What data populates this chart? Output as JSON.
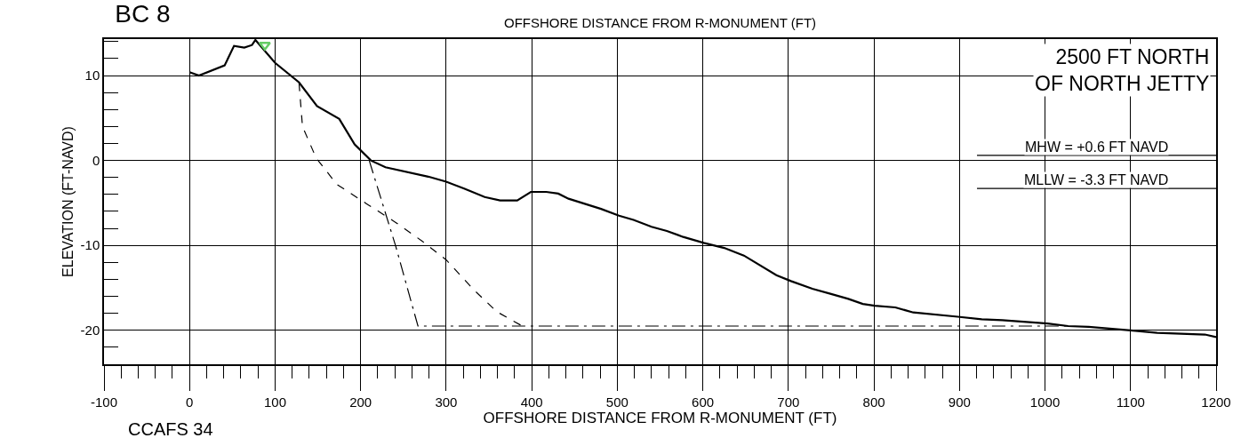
{
  "chart_data": {
    "type": "line",
    "title": "BC 8",
    "xlabel": "OFFSHORE DISTANCE FROM R-MONUMENT (FT)",
    "ylabel": "ELEVATION (FT-NAVD)",
    "annotations": [
      "2500 FT NORTH\nOF NORTH JETTY",
      "OFFSHORE DISTANCE FROM R-MONUMENT (FT)",
      "CCAFS 34"
    ],
    "series": [
      {
        "color": "#000000",
        "line_style": "solid",
        "x": [
          0,
          11,
          41,
          52,
          64,
          73,
          77,
          100,
          128,
          149,
          175,
          193,
          212,
          229,
          279,
          300,
          321,
          345,
          363,
          383,
          399,
          417,
          431,
          443,
          481,
          502,
          519,
          540,
          558,
          577,
          601,
          625,
          648,
          686,
          703,
          728,
          749,
          770,
          787,
          801,
          825,
          846,
          898,
          926,
          950,
          1003,
          1027,
          1051,
          1100,
          1131,
          1187,
          1200
        ],
        "values": [
          10.4,
          10.0,
          11.2,
          13.5,
          13.3,
          13.6,
          14.2,
          11.5,
          9.2,
          6.4,
          4.9,
          1.9,
          0,
          -0.8,
          -1.9,
          -2.5,
          -3.3,
          -4.3,
          -4.7,
          -4.7,
          -3.7,
          -3.7,
          -3.9,
          -4.5,
          -5.7,
          -6.5,
          -7.0,
          -7.8,
          -8.3,
          -9.0,
          -9.7,
          -10.3,
          -11.2,
          -13.5,
          -14.2,
          -15.1,
          -15.7,
          -16.3,
          -16.9,
          -17.1,
          -17.3,
          -17.9,
          -18.4,
          -18.7,
          -18.8,
          -19.2,
          -19.5,
          -19.6,
          -20.0,
          -20.3,
          -20.5,
          -20.8
        ]
      },
      {
        "color": "#000000",
        "line_style": "dashed",
        "x": [
          128,
          132,
          148,
          172,
          207,
          241,
          272,
          300,
          332,
          359,
          389
        ],
        "values": [
          9.1,
          4.0,
          0.3,
          -2.8,
          -5.1,
          -7.3,
          -9.5,
          -11.7,
          -15.2,
          -17.8,
          -19.5
        ]
      },
      {
        "color": "#000000",
        "line_style": "dashdot",
        "x": [
          210,
          241,
          267,
          1025
        ],
        "values": [
          0,
          -10.1,
          -19.5,
          -19.5
        ]
      },
      {
        "type": "scatter",
        "color": "#66cc66",
        "marker": "triangle",
        "x": [
          88
        ],
        "values": [
          13.6
        ]
      }
    ],
    "xlim": [
      -100,
      1200
    ],
    "ylim": [
      -24,
      14.3
    ],
    "xticks": [
      -100,
      0,
      100,
      200,
      300,
      400,
      500,
      600,
      700,
      800,
      900,
      1000,
      1100,
      1200,
      {
        "value": -80,
        "label": null
      },
      {
        "value": -60,
        "label": null
      },
      {
        "value": -40,
        "label": null
      },
      {
        "value": -20,
        "label": null
      },
      {
        "value": 20,
        "label": null
      },
      {
        "value": 40,
        "label": null
      },
      {
        "value": 60,
        "label": null
      },
      {
        "value": 80,
        "label": null
      },
      {
        "value": 120,
        "label": null
      },
      {
        "value": 140,
        "label": null
      },
      {
        "value": 160,
        "label": null
      },
      {
        "value": 180,
        "label": null
      },
      {
        "value": 220,
        "label": null
      },
      {
        "value": 240,
        "label": null
      },
      {
        "value": 260,
        "label": null
      },
      {
        "value": 280,
        "label": null
      },
      {
        "value": 320,
        "label": null
      },
      {
        "value": 340,
        "label": null
      },
      {
        "value": 360,
        "label": null
      },
      {
        "value": 380,
        "label": null
      },
      {
        "value": 420,
        "label": null
      },
      {
        "value": 440,
        "label": null
      },
      {
        "value": 460,
        "label": null
      },
      {
        "value": 480,
        "label": null
      },
      {
        "value": 520,
        "label": null
      },
      {
        "value": 540,
        "label": null
      },
      {
        "value": 560,
        "label": null
      },
      {
        "value": 580,
        "label": null
      },
      {
        "value": 620,
        "label": null
      },
      {
        "value": 640,
        "label": null
      },
      {
        "value": 660,
        "label": null
      },
      {
        "value": 680,
        "label": null
      },
      {
        "value": 720,
        "label": null
      },
      {
        "value": 740,
        "label": null
      },
      {
        "value": 760,
        "label": null
      },
      {
        "value": 780,
        "label": null
      },
      {
        "value": 820,
        "label": null
      },
      {
        "value": 840,
        "label": null
      },
      {
        "value": 860,
        "label": null
      },
      {
        "value": 880,
        "label": null
      },
      {
        "value": 920,
        "label": null
      },
      {
        "value": 940,
        "label": null
      },
      {
        "value": 960,
        "label": null
      },
      {
        "value": 980,
        "label": null
      },
      {
        "value": 1020,
        "label": null
      },
      {
        "value": 1040,
        "label": null
      },
      {
        "value": 1060,
        "label": null
      },
      {
        "value": 1080,
        "label": null
      },
      {
        "value": 1120,
        "label": null
      },
      {
        "value": 1140,
        "label": null
      },
      {
        "value": 1160,
        "label": null
      },
      {
        "value": 1180,
        "label": null
      }
    ],
    "yticks": [
      -20,
      -10,
      0,
      10,
      {
        "value": -22,
        "label": null
      },
      {
        "value": -18,
        "label": null
      },
      {
        "value": -16,
        "label": null
      },
      {
        "value": -14,
        "label": null
      },
      {
        "value": -12,
        "label": null
      },
      {
        "value": -8,
        "label": null
      },
      {
        "value": -6,
        "label": null
      },
      {
        "value": -4,
        "label": null
      },
      {
        "value": -2,
        "label": null
      },
      {
        "value": 2,
        "label": null
      },
      {
        "value": 4,
        "label": null
      },
      {
        "value": 6,
        "label": null
      },
      {
        "value": 8,
        "label": null
      },
      {
        "value": 12,
        "label": null
      },
      {
        "value": 14,
        "label": null
      }
    ],
    "ref_lines": [
      {
        "axis": "y",
        "value": 0.6,
        "label": "MHW = +0.6 FT NAVD",
        "color": "#000000"
      },
      {
        "axis": "y",
        "value": -3.3,
        "label": "MLLW = -3.3 FT NAVD",
        "color": "#000000"
      }
    ],
    "grid": true
  }
}
